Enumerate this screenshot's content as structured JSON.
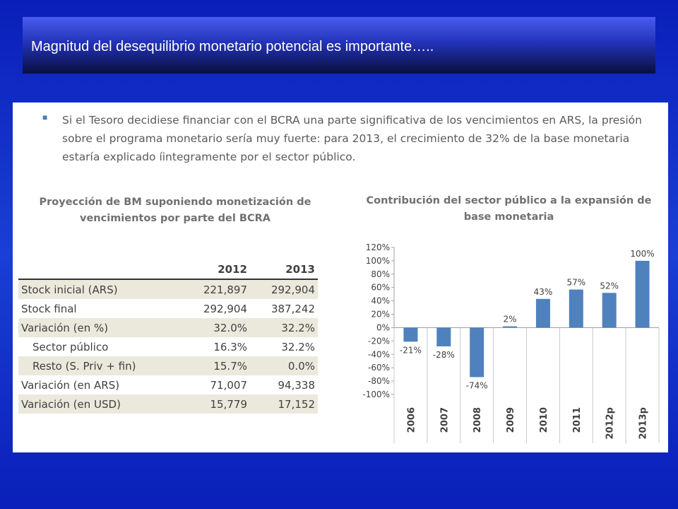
{
  "slide": {
    "title": "Magnitud del desequilibrio monetario potencial es importante….."
  },
  "bullet": {
    "text": "Si el Tesoro decidiese financiar con el BCRA una parte significativa de los vencimientos en ARS, la presión sobre el programa monetario sería muy fuerte: para 2013, el crecimiento de 32% de la base monetaria estaría explicado íintegramente por el sector público."
  },
  "table": {
    "title_line1": "Proyección de BM suponiendo monetización de",
    "title_line2": "vencimientos por parte del BCRA",
    "headers": [
      "",
      "2012",
      "2013"
    ],
    "rows": [
      [
        "Stock inicial (ARS)",
        "221,897",
        "292,904"
      ],
      [
        "Stock final",
        "292,904",
        "387,242"
      ],
      [
        "Variación (en %)",
        "32.0%",
        "32.2%"
      ],
      [
        "Sector público",
        "16.3%",
        "32.2%"
      ],
      [
        "Resto (S. Priv + fin)",
        "15.7%",
        "0.0%"
      ],
      [
        "Variación (en ARS)",
        "71,007",
        "94,338"
      ],
      [
        "Variación (en USD)",
        "15,779",
        "17,152"
      ]
    ]
  },
  "chart_data": {
    "type": "bar",
    "title_line1": "Contribución del sector público a la expansión de",
    "title_line2": "base monetaria",
    "categories": [
      "2006",
      "2007",
      "2008",
      "2009",
      "2010",
      "2011",
      "2012p",
      "2013p"
    ],
    "values": [
      -21,
      -28,
      -74,
      2,
      43,
      57,
      52,
      100
    ],
    "data_labels": [
      "-21%",
      "-28%",
      "-74%",
      "2%",
      "43%",
      "57%",
      "52%",
      "100%"
    ],
    "yticks": [
      "120%",
      "100%",
      "80%",
      "60%",
      "40%",
      "20%",
      "0%",
      "-20%",
      "-40%",
      "-60%",
      "-80%",
      "-100%"
    ],
    "ylim": [
      -100,
      120
    ],
    "bar_color": "#4f81bd",
    "grid": false
  }
}
